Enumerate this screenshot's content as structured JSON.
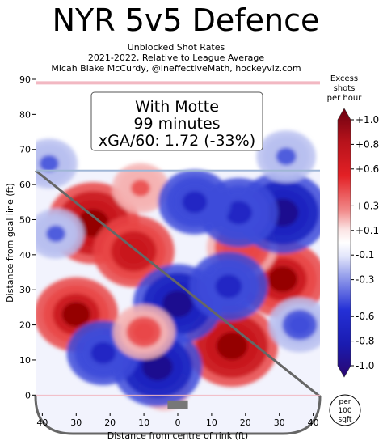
{
  "header": {
    "title": "NYR 5v5 Defence",
    "subtitle_1": "Unblocked Shot Rates",
    "subtitle_2": "2021-2022, Relative to League Average",
    "subtitle_3": "Micah Blake McCurdy, @IneffectiveMath, hockeyviz.com"
  },
  "annotation": {
    "line_1": "With Motte",
    "line_2": "99 minutes",
    "line_3": "xGA/60: 1.72 (-33%)"
  },
  "colorbar": {
    "title_1": "Excess",
    "title_2": "shots",
    "title_3": "per hour",
    "ticks": [
      "+1.0",
      "+0.8",
      "+0.6",
      "+0.3",
      "+0.1",
      "-0.1",
      "-0.3",
      "-0.6",
      "-0.8",
      "-1.0"
    ],
    "tick_values": [
      1.0,
      0.8,
      0.6,
      0.3,
      0.1,
      -0.1,
      -0.3,
      -0.6,
      -0.8,
      -1.0
    ],
    "colors": {
      "pos_strong": "#8b0000",
      "pos_mid": "#e32025",
      "pos_light": "#f6b3b3",
      "neutral": "#ffffff",
      "neg_light": "#b8bff0",
      "neg_mid": "#2430d6",
      "neg_strong": "#1a0a7a"
    }
  },
  "per_area_badge": {
    "line_1": "per",
    "line_2": "100",
    "line_3": "sqft"
  },
  "chart_data": {
    "type": "heatmap",
    "xlabel": "Distance from centre of rink (ft)",
    "ylabel": "Distance from goal line (ft)",
    "xlim": [
      42,
      -42
    ],
    "ylim": [
      -5,
      90
    ],
    "xticks": [
      40,
      30,
      20,
      10,
      0,
      10,
      20,
      30,
      40
    ],
    "xtick_values": [
      40,
      30,
      20,
      10,
      0,
      -10,
      -20,
      -30,
      -40
    ],
    "yticks": [
      0,
      10,
      20,
      30,
      40,
      50,
      60,
      70,
      80,
      90
    ],
    "value_range": [
      -1.0,
      1.0
    ],
    "hotspots": [
      {
        "x": 25,
        "y": 49,
        "value": 0.95
      },
      {
        "x": 13,
        "y": 41,
        "value": 0.75
      },
      {
        "x": 30,
        "y": 23,
        "value": 0.8
      },
      {
        "x": 11,
        "y": 59,
        "value": 0.3
      },
      {
        "x": -16,
        "y": 14,
        "value": 0.95
      },
      {
        "x": -31,
        "y": 33,
        "value": 0.85
      },
      {
        "x": -19,
        "y": 42,
        "value": 0.55
      },
      {
        "x": 4,
        "y": 2,
        "value": 0.2
      },
      {
        "x": -31,
        "y": 52,
        "value": -0.95
      },
      {
        "x": -18,
        "y": 52,
        "value": -0.7
      },
      {
        "x": 0,
        "y": 26,
        "value": -0.9
      },
      {
        "x": 6,
        "y": 8,
        "value": -0.9
      },
      {
        "x": 22,
        "y": 12,
        "value": -0.6
      },
      {
        "x": -5,
        "y": 55,
        "value": -0.6
      },
      {
        "x": -15,
        "y": 31,
        "value": -0.7
      },
      {
        "x": 36,
        "y": 46,
        "value": -0.3
      },
      {
        "x": -36,
        "y": 20,
        "value": -0.4
      },
      {
        "x": -32,
        "y": 68,
        "value": -0.35
      },
      {
        "x": 38,
        "y": 66,
        "value": -0.3
      },
      {
        "x": 10,
        "y": 18,
        "value": 0.4
      }
    ]
  }
}
